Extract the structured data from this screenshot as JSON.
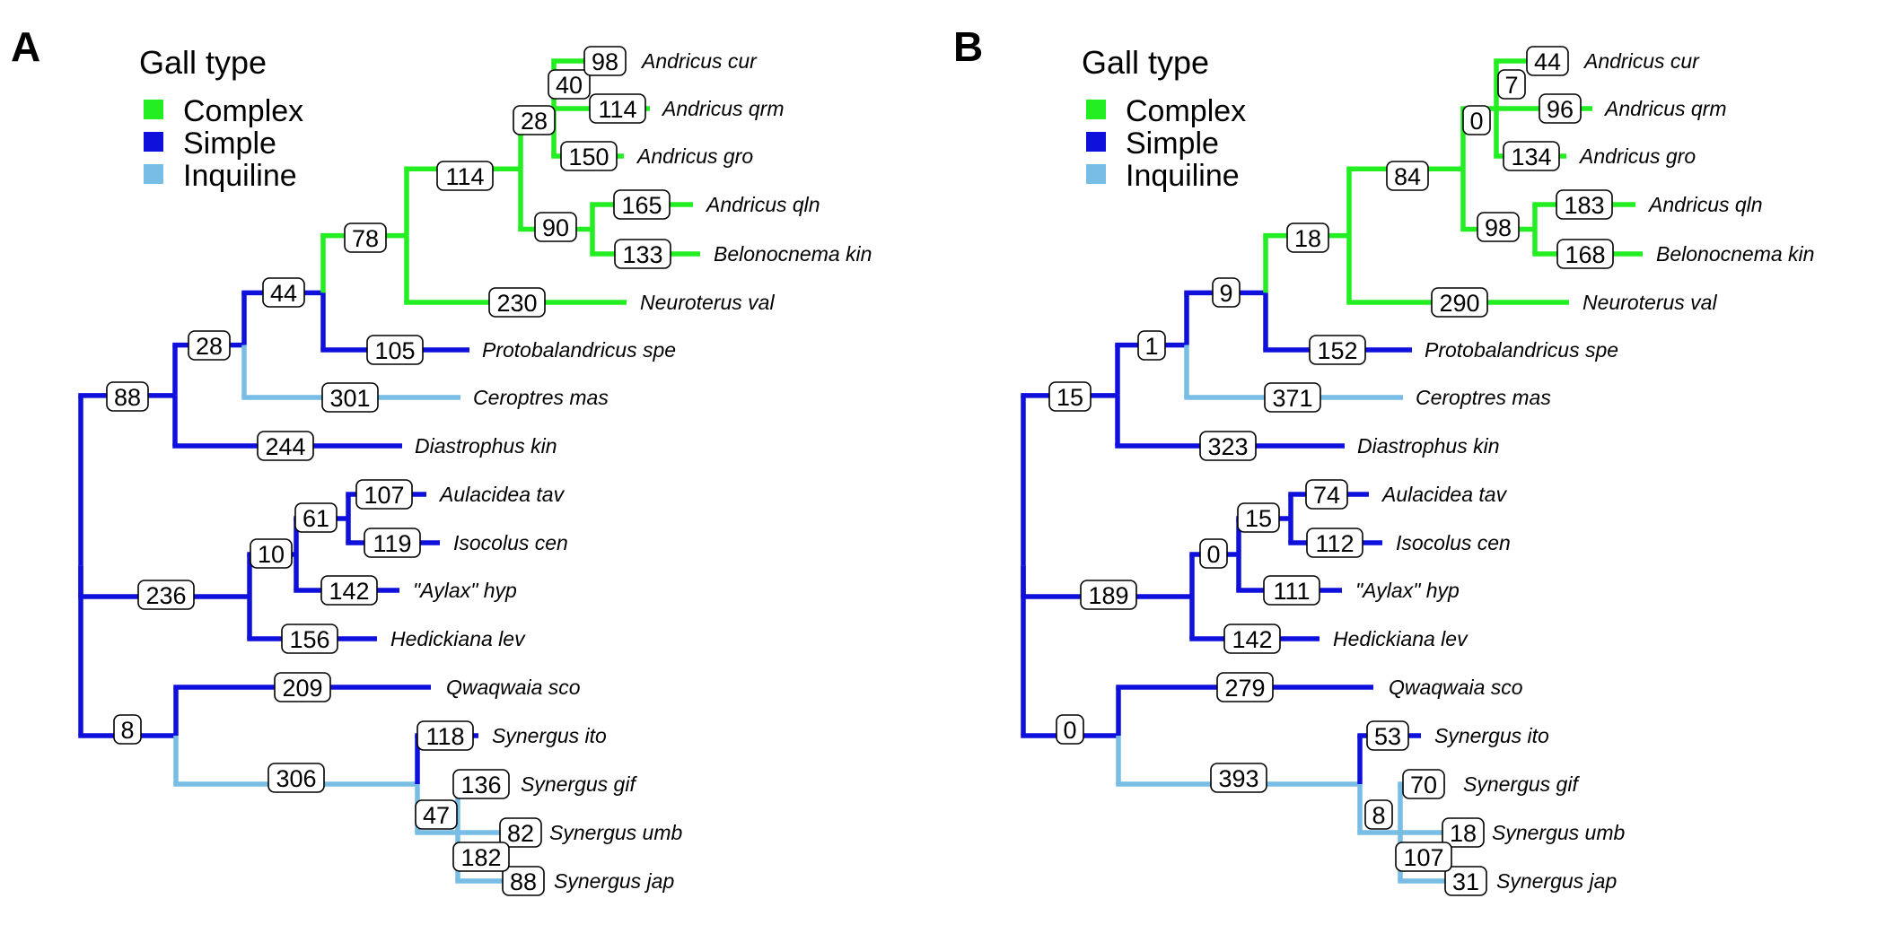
{
  "legend": {
    "title": "Gall type",
    "items": [
      {
        "key": "complex",
        "label": "Complex",
        "color": "#22ee22"
      },
      {
        "key": "simple",
        "label": "Simple",
        "color": "#1010dd"
      },
      {
        "key": "inquiline",
        "label": "Inquiline",
        "color": "#77bde6"
      }
    ]
  },
  "taxa": [
    "Andricus cur",
    "Andricus qrm",
    "Andricus gro",
    "Andricus qln",
    "Belonocnema kin",
    "Neuroterus val",
    "Protobalandricus spe",
    "Ceroptres mas",
    "Diastrophus kin",
    "Aulacidea tav",
    "Isocolus cen",
    "\"Aylax\" hyp",
    "Hedickiana lev",
    "Qwaqwaia sco",
    "Synergus ito",
    "Synergus gif",
    "Synergus umb",
    "Synergus jap"
  ],
  "panels": [
    {
      "letter": "A",
      "branch_values": {
        "n_root_upper": "88",
        "n_root_mid": "236",
        "n_root_low": "8",
        "n_gall": "28",
        "n_oak": "44",
        "n_cyn": "78",
        "n_cyn2": "114",
        "n_and": "28",
        "n_and2": "40",
        "n_qb": "90",
        "n_ab": "10",
        "n_ab2": "61",
        "n_syn": "47",
        "t0": "98",
        "t1": "114",
        "t2": "150",
        "t3": "165",
        "t4": "133",
        "t5": "230",
        "t6": "105",
        "t7": "301",
        "t8": "244",
        "t9": "107",
        "t10": "119",
        "t11": "142",
        "t12": "156",
        "t13": "209",
        "e_syn": "306",
        "t14": "118",
        "t15": "136",
        "t16": "82",
        "t17": "88",
        "n_syn2": "182"
      }
    },
    {
      "letter": "B",
      "branch_values": {
        "n_root_upper": "15",
        "n_root_mid": "189",
        "n_root_low": "0",
        "n_gall": "1",
        "n_oak": "9",
        "n_cyn": "18",
        "n_cyn2": "84",
        "n_and": "0",
        "n_and2": "7",
        "n_qb": "98",
        "n_ab": "0",
        "n_ab2": "15",
        "n_syn": "8",
        "t0": "44",
        "t1": "96",
        "t2": "134",
        "t3": "183",
        "t4": "168",
        "t5": "290",
        "t6": "152",
        "t7": "371",
        "t8": "323",
        "t9": "74",
        "t10": "112",
        "t11": "111",
        "t12": "142",
        "t13": "279",
        "e_syn": "393",
        "t14": "53",
        "t15": "70",
        "t16": "18",
        "t17": "31",
        "n_syn2": "107"
      }
    }
  ]
}
